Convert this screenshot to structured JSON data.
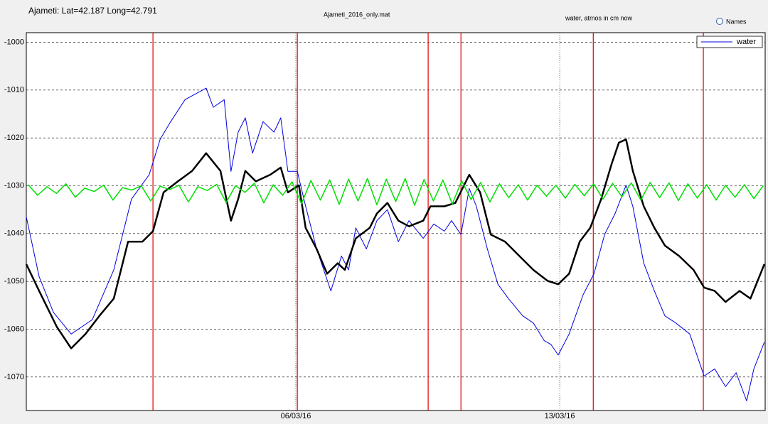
{
  "header": {
    "location": "Ajameti: Lat=42.187 Long=42.791",
    "file": "Ajameti_2016_only.mat",
    "units_note": "water, atmos in cm now",
    "names_option": "Names"
  },
  "chart_data": {
    "type": "line",
    "xlim": [
      -1.15,
      18.45
    ],
    "xticks": [
      {
        "value": 6,
        "label": "06/03/16"
      },
      {
        "value": 13,
        "label": "13/03/16"
      }
    ],
    "ylim": [
      -1077,
      -998
    ],
    "yticks": [
      -1000,
      -1010,
      -1020,
      -1030,
      -1040,
      -1050,
      -1060,
      -1070
    ],
    "grid": true,
    "legend": "upper right",
    "vlines": {
      "x": [
        2.21,
        6.04,
        9.51,
        10.38,
        13.89,
        16.81
      ],
      "color": "#e00000"
    },
    "series": [
      {
        "name": "water",
        "color": "#0000e0",
        "width": 1,
        "x": [
          -1.15,
          -0.81,
          -0.43,
          0.04,
          0.6,
          1.17,
          1.64,
          2.11,
          2.4,
          2.68,
          3.06,
          3.62,
          3.81,
          4.1,
          4.28,
          4.47,
          4.66,
          4.85,
          5.13,
          5.42,
          5.6,
          5.79,
          6.04,
          6.26,
          6.55,
          6.93,
          7.21,
          7.4,
          7.59,
          7.87,
          8.15,
          8.43,
          8.72,
          9.0,
          9.38,
          9.66,
          9.94,
          10.13,
          10.38,
          10.6,
          10.79,
          11.08,
          11.36,
          11.64,
          12.02,
          12.3,
          12.59,
          12.77,
          12.96,
          13.25,
          13.62,
          13.91,
          14.19,
          14.47,
          14.76,
          14.94,
          15.23,
          15.51,
          15.79,
          16.08,
          16.45,
          16.83,
          17.11,
          17.4,
          17.68,
          17.96,
          18.15,
          18.43
        ],
        "values": [
          -1036.5,
          -1049,
          -1056.5,
          -1061,
          -1058,
          -1047.6,
          -1032.8,
          -1027.7,
          -1020.3,
          -1016.6,
          -1012,
          -1009.6,
          -1013.6,
          -1012,
          -1027,
          -1018.8,
          -1015.8,
          -1023.2,
          -1016.6,
          -1018.8,
          -1015.8,
          -1027,
          -1027,
          -1034.3,
          -1043.2,
          -1052,
          -1044.7,
          -1047.6,
          -1038.8,
          -1043.2,
          -1037.3,
          -1035,
          -1041.7,
          -1037.3,
          -1041,
          -1038,
          -1039.5,
          -1037.3,
          -1040.2,
          -1030.6,
          -1034.3,
          -1043.2,
          -1050.6,
          -1053.6,
          -1057.2,
          -1058.7,
          -1062.4,
          -1063.2,
          -1065.4,
          -1061,
          -1052.8,
          -1048.4,
          -1040.2,
          -1035.8,
          -1029.9,
          -1034.3,
          -1046.2,
          -1052,
          -1057.2,
          -1058.7,
          -1061,
          -1069.8,
          -1068.3,
          -1072,
          -1069.1,
          -1075,
          -1068.3,
          -1062.7
        ]
      },
      {
        "color": "#000000",
        "width": 2.5,
        "x": [
          -1.15,
          -0.81,
          -0.34,
          0.04,
          0.42,
          0.79,
          1.17,
          1.55,
          1.93,
          2.21,
          2.49,
          2.87,
          3.25,
          3.62,
          4.0,
          4.28,
          4.47,
          4.66,
          4.94,
          5.32,
          5.6,
          5.79,
          6.08,
          6.26,
          6.55,
          6.83,
          7.11,
          7.3,
          7.59,
          7.96,
          8.15,
          8.43,
          8.72,
          9.0,
          9.38,
          9.57,
          9.94,
          10.23,
          10.42,
          10.6,
          10.89,
          11.17,
          11.55,
          11.93,
          12.3,
          12.68,
          12.96,
          13.25,
          13.53,
          13.81,
          14.1,
          14.38,
          14.57,
          14.76,
          14.94,
          15.23,
          15.51,
          15.79,
          16.17,
          16.55,
          16.83,
          17.11,
          17.4,
          17.77,
          18.06,
          18.25,
          18.43
        ],
        "values": [
          -1046.4,
          -1052,
          -1059.5,
          -1064,
          -1061,
          -1057.2,
          -1053.6,
          -1041.7,
          -1041.7,
          -1039.5,
          -1031.4,
          -1029.1,
          -1026.9,
          -1023.2,
          -1026.9,
          -1037.3,
          -1032.8,
          -1026.9,
          -1029.1,
          -1027.7,
          -1026.2,
          -1031.4,
          -1029.9,
          -1038.8,
          -1043.2,
          -1048.4,
          -1046.2,
          -1047.6,
          -1041,
          -1038.8,
          -1035.8,
          -1033.6,
          -1037.3,
          -1038.5,
          -1037.3,
          -1034.3,
          -1034.3,
          -1033.6,
          -1030.6,
          -1027.7,
          -1031.4,
          -1040.2,
          -1041.7,
          -1044.7,
          -1047.6,
          -1049.9,
          -1050.6,
          -1048.4,
          -1041.7,
          -1038.8,
          -1032.8,
          -1025.4,
          -1021,
          -1020.3,
          -1026.9,
          -1034.3,
          -1038.8,
          -1042.5,
          -1044.7,
          -1047.6,
          -1051.3,
          -1052,
          -1054.3,
          -1052,
          -1053.6,
          -1049.9,
          -1046.4
        ]
      },
      {
        "color": "#00e000",
        "width": 1.5,
        "x": [
          -1.1,
          -0.85,
          -0.6,
          -0.35,
          -0.1,
          0.15,
          0.4,
          0.65,
          0.9,
          1.15,
          1.4,
          1.65,
          1.9,
          2.15,
          2.4,
          2.65,
          2.9,
          3.15,
          3.4,
          3.65,
          3.9,
          4.15,
          4.4,
          4.65,
          4.9,
          5.15,
          5.4,
          5.65,
          5.9,
          6.15,
          6.4,
          6.65,
          6.9,
          7.15,
          7.4,
          7.65,
          7.9,
          8.15,
          8.4,
          8.65,
          8.9,
          9.15,
          9.4,
          9.65,
          9.9,
          10.15,
          10.4,
          10.65,
          10.9,
          11.15,
          11.4,
          11.65,
          11.9,
          12.15,
          12.4,
          12.65,
          12.9,
          13.15,
          13.4,
          13.65,
          13.9,
          14.15,
          14.4,
          14.65,
          14.9,
          15.15,
          15.4,
          15.65,
          15.9,
          16.15,
          16.4,
          16.65,
          16.9,
          17.15,
          17.4,
          17.65,
          17.9,
          18.15,
          18.4
        ],
        "values": [
          -1029.8,
          -1032.0,
          -1030.2,
          -1031.6,
          -1029.6,
          -1032.4,
          -1030.5,
          -1031.2,
          -1029.9,
          -1033.0,
          -1030.4,
          -1030.9,
          -1030.0,
          -1033.2,
          -1030.1,
          -1030.8,
          -1029.9,
          -1033.4,
          -1030.2,
          -1031.0,
          -1029.7,
          -1033.5,
          -1030.0,
          -1031.4,
          -1029.5,
          -1033.6,
          -1029.8,
          -1032.0,
          -1029.2,
          -1033.8,
          -1028.9,
          -1033.0,
          -1028.8,
          -1033.9,
          -1028.6,
          -1033.2,
          -1028.5,
          -1034.0,
          -1028.6,
          -1033.3,
          -1028.5,
          -1034.1,
          -1028.7,
          -1033.2,
          -1028.8,
          -1033.8,
          -1029.0,
          -1032.9,
          -1029.3,
          -1033.4,
          -1029.6,
          -1032.5,
          -1029.8,
          -1033.0,
          -1029.9,
          -1032.2,
          -1029.9,
          -1032.6,
          -1029.7,
          -1032.1,
          -1029.6,
          -1032.8,
          -1029.5,
          -1032.3,
          -1029.4,
          -1033.0,
          -1029.3,
          -1032.5,
          -1029.4,
          -1033.1,
          -1029.6,
          -1032.6,
          -1029.8,
          -1033.0,
          -1029.9,
          -1032.4,
          -1029.8,
          -1032.7,
          -1030.0
        ]
      }
    ]
  }
}
